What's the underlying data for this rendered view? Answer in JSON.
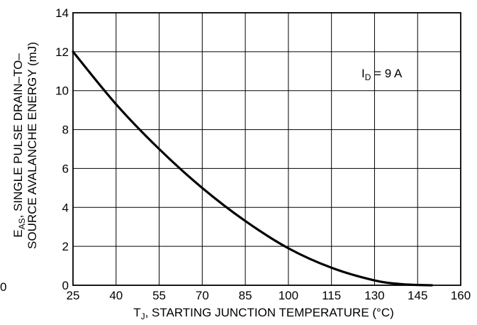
{
  "chart_data": {
    "type": "line",
    "xlabel_main": "T",
    "xlabel_sub": "J",
    "xlabel_rest": ", STARTING JUNCTION TEMPERATURE (°C)",
    "ylabel_line1_main": "E",
    "ylabel_line1_sub": "AS",
    "ylabel_line1_rest": ", SINGLE PULSE DRAIN–TO–",
    "ylabel_line2": "SOURCE AVALANCHE ENERGY (mJ)",
    "stray_label": "0",
    "xlim": [
      25,
      160
    ],
    "ylim": [
      0,
      14
    ],
    "x_ticks": [
      25,
      40,
      55,
      70,
      85,
      100,
      115,
      130,
      145,
      160
    ],
    "y_ticks": [
      0,
      2,
      4,
      6,
      8,
      10,
      12,
      14
    ],
    "grid": true,
    "annotation": {
      "main": "I",
      "sub": "D",
      "rest": " = 9 A"
    },
    "series": [
      {
        "x": [
          25,
          40,
          55,
          70,
          85,
          100,
          115,
          130,
          140,
          150
        ],
        "y": [
          12.0,
          9.3,
          7.0,
          5.0,
          3.3,
          1.9,
          0.9,
          0.25,
          0.05,
          0.0
        ]
      }
    ]
  }
}
